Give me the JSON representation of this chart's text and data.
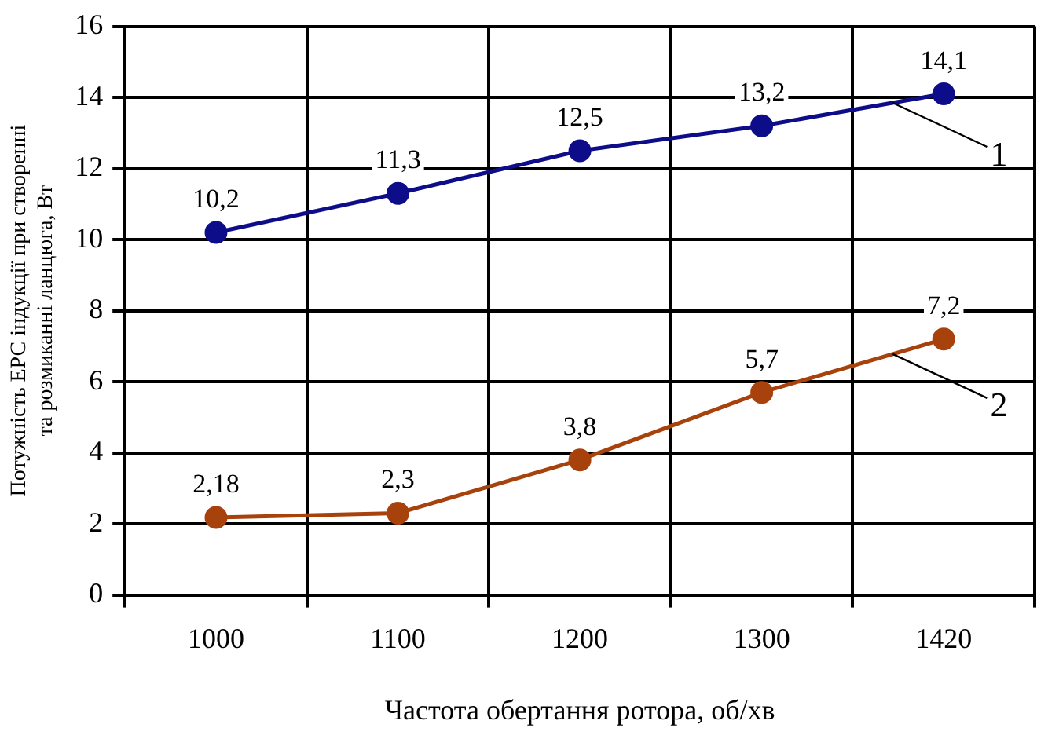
{
  "chart_data": {
    "type": "line",
    "xlabel": "Частота обертання ротора, об/хв",
    "ylabel": "Потужність ЕРС індукції при створенні та розмиканні ланцюга, Вт",
    "categories": [
      "1000",
      "1100",
      "1200",
      "1300",
      "1420"
    ],
    "series": [
      {
        "name": "1",
        "color": "#0d0d8a",
        "values": [
          10.2,
          11.3,
          12.5,
          13.2,
          14.1
        ],
        "value_labels": [
          "10,2",
          "11,3",
          "12,5",
          "13,2",
          "14,1"
        ]
      },
      {
        "name": "2",
        "color": "#a8420c",
        "values": [
          2.18,
          2.3,
          3.8,
          5.7,
          7.2
        ],
        "value_labels": [
          "2,18",
          "2,3",
          "3,8",
          "5,7",
          "7,2"
        ]
      }
    ],
    "ylim": [
      0,
      16
    ],
    "yticks": [
      0,
      2,
      4,
      6,
      8,
      10,
      12,
      14,
      16
    ],
    "grid": true,
    "legend": false,
    "marker": "circle",
    "line_style": "solid"
  }
}
